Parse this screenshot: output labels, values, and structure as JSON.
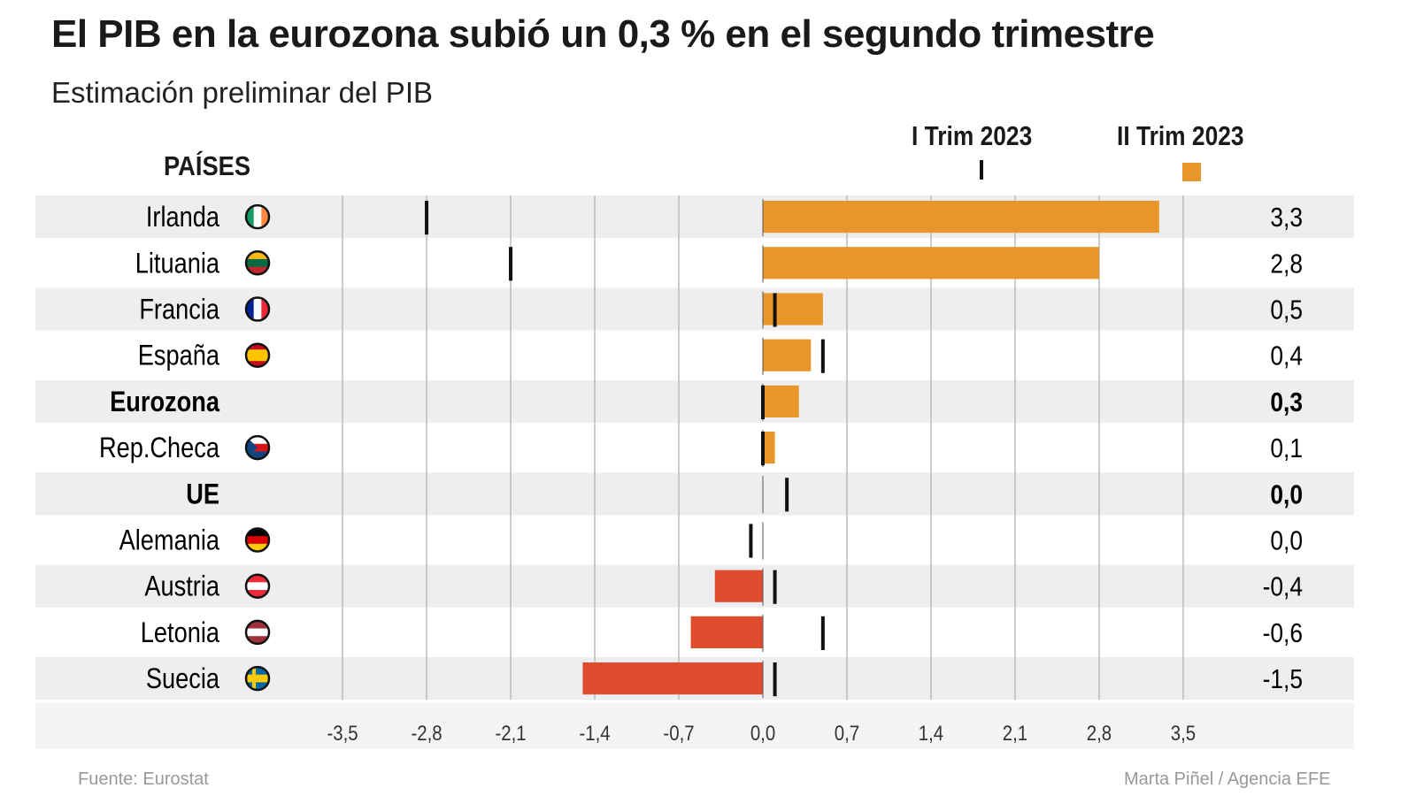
{
  "title": "El PIB en la eurozona subió un 0,3 % en el segundo trimestre",
  "subtitle": "Estimación preliminar del PIB",
  "column_header": "PAÍSES",
  "source": "Fuente: Eurostat",
  "author": "Marta Piñel / Agencia EFE",
  "colors": {
    "positive": "#E8962A",
    "negative": "#E04B2E",
    "marker": "#111111",
    "stripe": "#EEEEF0"
  },
  "chart_data": {
    "type": "bar",
    "title": "El PIB en la eurozona subió un 0,3 % en el segundo trimestre",
    "xlabel": "",
    "ylabel": "",
    "xlim": [
      -3.5,
      3.5
    ],
    "xticks": [
      -3.5,
      -2.8,
      -2.1,
      -1.4,
      -0.7,
      0.0,
      0.7,
      1.4,
      2.1,
      2.8,
      3.5
    ],
    "xtick_labels": [
      "-3,5",
      "-2,8",
      "-2,1",
      "-1,4",
      "-0,7",
      "0,0",
      "0,7",
      "1,4",
      "2,1",
      "2,8",
      "3,5"
    ],
    "legend": [
      "I Trim 2023",
      "II Trim 2023"
    ],
    "legend_placement": "top-right",
    "categories": [
      "Irlanda",
      "Lituania",
      "Francia",
      "España",
      "Eurozona",
      "Rep.Checa",
      "UE",
      "Alemania",
      "Austria",
      "Letonia",
      "Suecia"
    ],
    "bold": [
      false,
      false,
      false,
      false,
      true,
      false,
      true,
      false,
      false,
      false,
      false
    ],
    "flags": [
      [
        "#169b62",
        "#ffffff",
        "#ff883e"
      ],
      [
        "#fdb913",
        "#006a44",
        "#c1272d"
      ],
      [
        "#002395",
        "#ffffff",
        "#ed2939"
      ],
      [
        "#c60b1e",
        "#ffc400",
        "#c60b1e"
      ],
      null,
      [
        "#ffffff",
        "#d7141a",
        "#11457e"
      ],
      null,
      [
        "#000000",
        "#dd0000",
        "#ffce00"
      ],
      [
        "#ed2939",
        "#ffffff",
        "#ed2939"
      ],
      [
        "#9e3039",
        "#ffffff",
        "#9e3039"
      ],
      [
        "#006aa7",
        "#fecc00",
        "#006aa7"
      ]
    ],
    "series": [
      {
        "name": "II Trim 2023",
        "values": [
          3.3,
          2.8,
          0.5,
          0.4,
          0.3,
          0.1,
          0.0,
          0.0,
          -0.4,
          -0.6,
          -1.5
        ]
      },
      {
        "name": "I Trim 2023",
        "values": [
          -2.8,
          -2.1,
          0.1,
          0.5,
          0.0,
          0.0,
          0.2,
          -0.1,
          0.1,
          0.5,
          0.1
        ]
      }
    ],
    "value_labels": [
      "3,3",
      "2,8",
      "0,5",
      "0,4",
      "0,3",
      "0,1",
      "0,0",
      "0,0",
      "-0,4",
      "-0,6",
      "-1,5"
    ]
  }
}
